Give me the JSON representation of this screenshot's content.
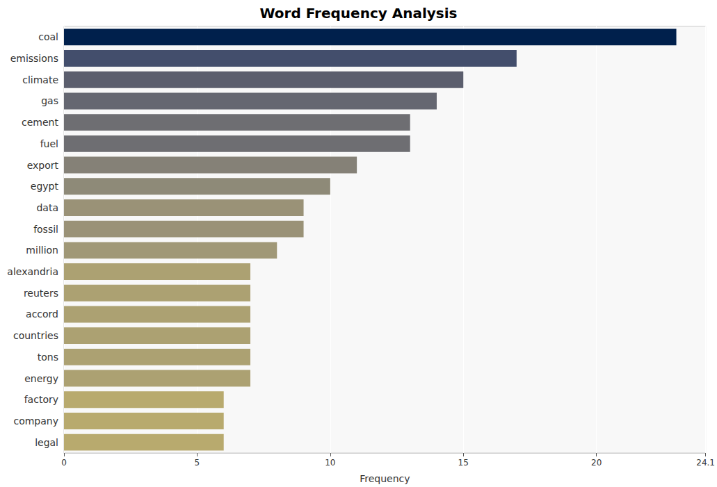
{
  "chart_data": {
    "type": "bar",
    "orientation": "horizontal",
    "title": "Word Frequency Analysis",
    "x_label": "Frequency",
    "categories": [
      "coal",
      "emissions",
      "climate",
      "gas",
      "cement",
      "fuel",
      "export",
      "egypt",
      "data",
      "fossil",
      "million",
      "alexandria",
      "reuters",
      "accord",
      "countries",
      "tons",
      "energy",
      "factory",
      "company",
      "legal"
    ],
    "values": [
      23,
      17,
      15,
      14,
      13,
      13,
      11,
      10,
      9,
      9,
      8,
      7,
      7,
      7,
      7,
      7,
      7,
      6,
      6,
      6
    ],
    "colors": [
      "#00204c",
      "#434e6c",
      "#5b5e6d",
      "#656771",
      "#6e6e72",
      "#6e6e72",
      "#858177",
      "#8e8a78",
      "#9a9277",
      "#9a9277",
      "#a09877",
      "#aca172",
      "#aca172",
      "#aca172",
      "#aca172",
      "#aca172",
      "#aca172",
      "#b8aa6e",
      "#b8aa6e",
      "#b8aa6e"
    ],
    "xlim": [
      0,
      24.1
    ],
    "xticks": [
      0,
      5,
      10,
      15,
      20
    ],
    "grid": true
  }
}
